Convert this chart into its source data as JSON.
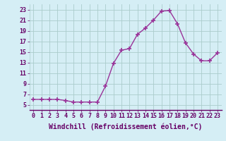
{
  "x": [
    0,
    1,
    2,
    3,
    4,
    5,
    6,
    7,
    8,
    9,
    10,
    11,
    12,
    13,
    14,
    15,
    16,
    17,
    18,
    19,
    20,
    21,
    22,
    23
  ],
  "y": [
    6,
    6,
    6,
    6,
    5.8,
    5.5,
    5.5,
    5.5,
    5.5,
    8.5,
    12.8,
    15.3,
    15.6,
    18.3,
    19.5,
    21.0,
    22.7,
    22.8,
    20.3,
    16.7,
    14.6,
    13.3,
    13.3,
    14.8
  ],
  "line_color": "#993399",
  "marker": "+",
  "marker_size": 4,
  "marker_lw": 1.2,
  "bg_color": "#d5eef5",
  "grid_color": "#aacccc",
  "xlabel": "Windchill (Refroidissement éolien,°C)",
  "xlabel_fontsize": 7,
  "xlim": [
    -0.5,
    23.5
  ],
  "ylim": [
    4,
    24
  ],
  "yticks": [
    5,
    7,
    9,
    11,
    13,
    15,
    17,
    19,
    21,
    23
  ],
  "xticks": [
    0,
    1,
    2,
    3,
    4,
    5,
    6,
    7,
    8,
    9,
    10,
    11,
    12,
    13,
    14,
    15,
    16,
    17,
    18,
    19,
    20,
    21,
    22,
    23
  ],
  "tick_fontsize": 6,
  "line_width": 1.0,
  "label_color": "#660066"
}
